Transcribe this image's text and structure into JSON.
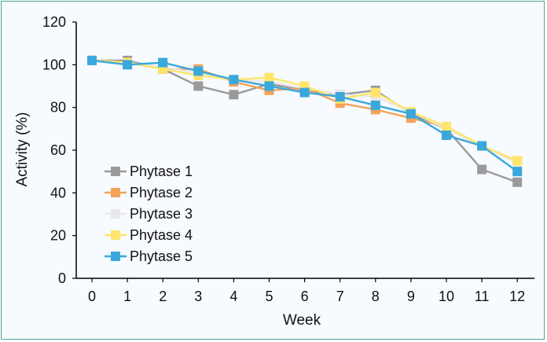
{
  "chart_data": {
    "type": "line",
    "title": "",
    "xlabel": "Week",
    "ylabel": "Activity (%)",
    "x": [
      0,
      1,
      2,
      3,
      4,
      5,
      6,
      7,
      8,
      9,
      10,
      11,
      12
    ],
    "ylim": [
      0,
      120
    ],
    "yticks": [
      0,
      20,
      40,
      60,
      80,
      100,
      120
    ],
    "grid": false,
    "legend_position": "bottom-left",
    "series": [
      {
        "name": "Phytase 1",
        "color": "#9a9a9a",
        "values": [
          102,
          102,
          98,
          90,
          86,
          91,
          88,
          86,
          88,
          77,
          70,
          51,
          45
        ]
      },
      {
        "name": "Phytase 2",
        "color": "#f4a259",
        "values": [
          102,
          101,
          98,
          98,
          92,
          88,
          89,
          82,
          79,
          75,
          71,
          62,
          55
        ]
      },
      {
        "name": "Phytase 3",
        "color": "#e8e8e8",
        "values": [
          102,
          101,
          99,
          96,
          93,
          92,
          89,
          86,
          85,
          78,
          70,
          62,
          54
        ]
      },
      {
        "name": "Phytase 4",
        "color": "#ffe66b",
        "values": [
          102,
          101,
          98,
          95,
          93,
          94,
          90,
          84,
          87,
          78,
          71,
          62,
          55
        ]
      },
      {
        "name": "Phytase 5",
        "color": "#3aa8dc",
        "values": [
          102,
          100,
          101,
          97,
          93,
          90,
          87,
          85,
          81,
          77,
          67,
          62,
          50
        ]
      }
    ]
  }
}
